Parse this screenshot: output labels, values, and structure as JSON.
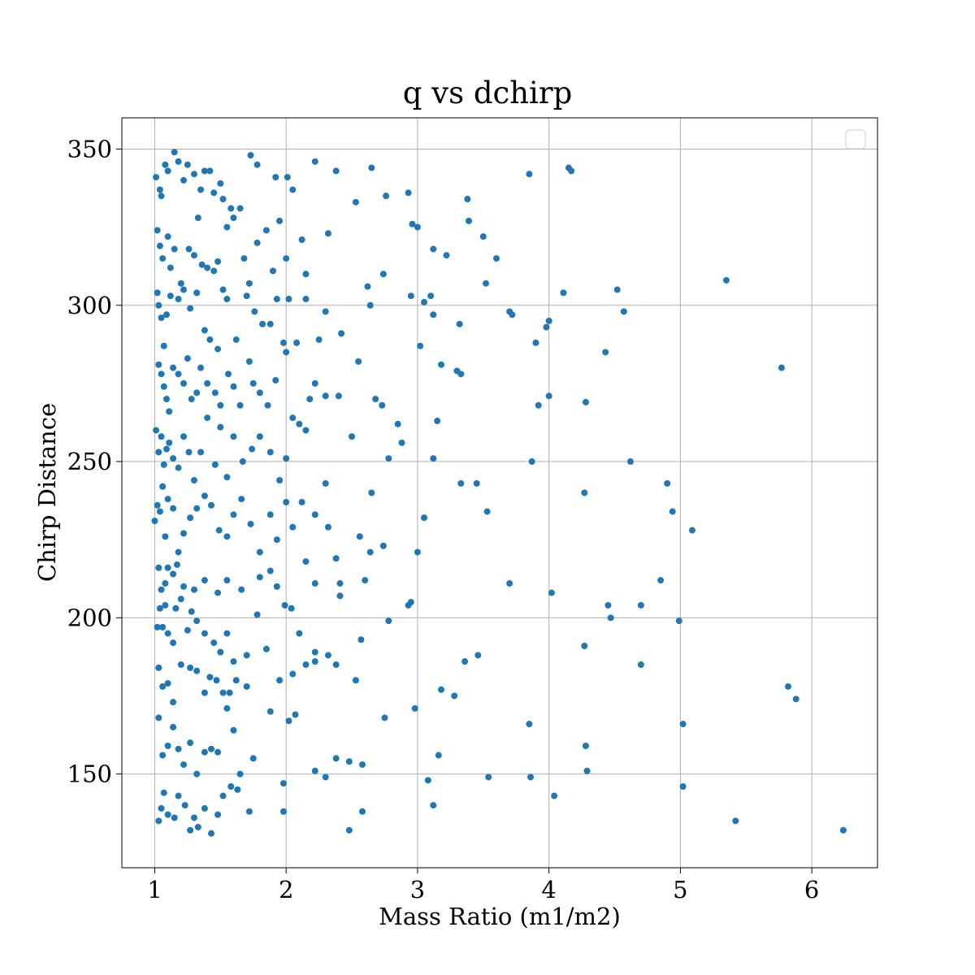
{
  "chart_data": {
    "type": "scatter",
    "title": "q vs dchirp",
    "xlabel": "Mass Ratio (m1/m2)",
    "ylabel": "Chirp Distance",
    "xlim": [
      0.75,
      6.5
    ],
    "ylim": [
      120,
      360
    ],
    "xticks": [
      1,
      2,
      3,
      4,
      5,
      6
    ],
    "yticks": [
      150,
      200,
      250,
      300,
      350
    ],
    "grid": true,
    "legend": {
      "placement": "top-right",
      "entries": []
    },
    "marker_color": "#1f77b4",
    "points": [
      [
        1.01,
        341
      ],
      [
        1.04,
        337
      ],
      [
        1.05,
        335
      ],
      [
        1.08,
        345
      ],
      [
        1.1,
        343
      ],
      [
        1.15,
        349
      ],
      [
        1.18,
        346
      ],
      [
        1.22,
        340
      ],
      [
        1.25,
        345
      ],
      [
        1.3,
        342
      ],
      [
        1.35,
        337
      ],
      [
        1.38,
        343
      ],
      [
        1.42,
        343
      ],
      [
        1.45,
        336
      ],
      [
        1.5,
        339
      ],
      [
        1.52,
        334
      ],
      [
        1.58,
        331
      ],
      [
        1.65,
        331
      ],
      [
        1.73,
        348
      ],
      [
        1.78,
        345
      ],
      [
        1.92,
        341
      ],
      [
        2.01,
        341
      ],
      [
        2.05,
        337
      ],
      [
        2.22,
        346
      ],
      [
        2.38,
        343
      ],
      [
        2.65,
        344
      ],
      [
        2.93,
        336
      ],
      [
        3.38,
        334
      ],
      [
        3.85,
        342
      ],
      [
        4.15,
        344
      ],
      [
        4.17,
        343
      ],
      [
        1.02,
        324
      ],
      [
        1.04,
        319
      ],
      [
        1.06,
        315
      ],
      [
        1.1,
        322
      ],
      [
        1.12,
        312
      ],
      [
        1.15,
        318
      ],
      [
        1.2,
        307
      ],
      [
        1.26,
        318
      ],
      [
        1.3,
        316
      ],
      [
        1.33,
        328
      ],
      [
        1.36,
        313
      ],
      [
        1.4,
        312
      ],
      [
        1.45,
        311
      ],
      [
        1.48,
        314
      ],
      [
        1.55,
        325
      ],
      [
        1.6,
        328
      ],
      [
        1.68,
        315
      ],
      [
        1.72,
        307
      ],
      [
        1.78,
        320
      ],
      [
        1.85,
        324
      ],
      [
        1.9,
        311
      ],
      [
        1.95,
        327
      ],
      [
        2.0,
        315
      ],
      [
        2.12,
        321
      ],
      [
        2.15,
        310
      ],
      [
        2.32,
        323
      ],
      [
        2.53,
        333
      ],
      [
        2.76,
        335
      ],
      [
        2.96,
        326
      ],
      [
        3.0,
        325
      ],
      [
        3.12,
        318
      ],
      [
        3.22,
        316
      ],
      [
        3.39,
        327
      ],
      [
        3.5,
        322
      ],
      [
        3.6,
        315
      ],
      [
        1.02,
        304
      ],
      [
        1.03,
        300
      ],
      [
        1.05,
        296
      ],
      [
        1.07,
        287
      ],
      [
        1.09,
        297
      ],
      [
        1.12,
        303
      ],
      [
        1.18,
        302
      ],
      [
        1.22,
        305
      ],
      [
        1.27,
        299
      ],
      [
        1.32,
        304
      ],
      [
        1.38,
        292
      ],
      [
        1.42,
        289
      ],
      [
        1.48,
        286
      ],
      [
        1.52,
        305
      ],
      [
        1.55,
        302
      ],
      [
        1.62,
        289
      ],
      [
        1.7,
        303
      ],
      [
        1.76,
        298
      ],
      [
        1.82,
        294
      ],
      [
        1.88,
        294
      ],
      [
        1.93,
        302
      ],
      [
        1.98,
        288
      ],
      [
        2.02,
        302
      ],
      [
        2.08,
        288
      ],
      [
        2.15,
        302
      ],
      [
        2.25,
        289
      ],
      [
        2.3,
        298
      ],
      [
        2.42,
        291
      ],
      [
        2.62,
        306
      ],
      [
        2.64,
        300
      ],
      [
        2.74,
        310
      ],
      [
        2.95,
        303
      ],
      [
        3.05,
        301
      ],
      [
        3.1,
        303
      ],
      [
        3.12,
        297
      ],
      [
        3.32,
        294
      ],
      [
        3.52,
        307
      ],
      [
        3.7,
        298
      ],
      [
        3.72,
        297
      ],
      [
        3.9,
        288
      ],
      [
        3.98,
        293
      ],
      [
        4.0,
        295
      ],
      [
        4.11,
        304
      ],
      [
        4.52,
        305
      ],
      [
        4.57,
        298
      ],
      [
        5.35,
        308
      ],
      [
        1.03,
        281
      ],
      [
        1.05,
        278
      ],
      [
        1.07,
        274
      ],
      [
        1.09,
        270
      ],
      [
        1.11,
        266
      ],
      [
        1.14,
        280
      ],
      [
        1.18,
        278
      ],
      [
        1.22,
        275
      ],
      [
        1.25,
        283
      ],
      [
        1.28,
        270
      ],
      [
        1.32,
        272
      ],
      [
        1.35,
        280
      ],
      [
        1.4,
        275
      ],
      [
        1.46,
        272
      ],
      [
        1.5,
        268
      ],
      [
        1.56,
        278
      ],
      [
        1.6,
        274
      ],
      [
        1.65,
        268
      ],
      [
        1.72,
        282
      ],
      [
        1.75,
        275
      ],
      [
        1.8,
        272
      ],
      [
        1.86,
        268
      ],
      [
        1.92,
        276
      ],
      [
        2.0,
        285
      ],
      [
        2.1,
        262
      ],
      [
        2.18,
        270
      ],
      [
        2.22,
        275
      ],
      [
        2.3,
        271
      ],
      [
        2.4,
        271
      ],
      [
        2.55,
        282
      ],
      [
        2.68,
        270
      ],
      [
        2.73,
        268
      ],
      [
        2.85,
        262
      ],
      [
        3.02,
        287
      ],
      [
        3.12,
        251
      ],
      [
        3.15,
        263
      ],
      [
        3.18,
        281
      ],
      [
        3.3,
        279
      ],
      [
        3.33,
        278
      ],
      [
        3.92,
        268
      ],
      [
        4.0,
        271
      ],
      [
        4.28,
        269
      ],
      [
        4.43,
        285
      ],
      [
        5.77,
        280
      ],
      [
        1.01,
        260
      ],
      [
        1.03,
        253
      ],
      [
        1.05,
        258
      ],
      [
        1.07,
        249
      ],
      [
        1.09,
        254
      ],
      [
        1.11,
        256
      ],
      [
        1.14,
        251
      ],
      [
        1.18,
        248
      ],
      [
        1.22,
        258
      ],
      [
        1.26,
        253
      ],
      [
        1.3,
        244
      ],
      [
        1.35,
        253
      ],
      [
        1.4,
        264
      ],
      [
        1.46,
        249
      ],
      [
        1.5,
        261
      ],
      [
        1.55,
        245
      ],
      [
        1.6,
        258
      ],
      [
        1.67,
        250
      ],
      [
        1.74,
        254
      ],
      [
        1.8,
        258
      ],
      [
        1.88,
        253
      ],
      [
        1.95,
        244
      ],
      [
        2.0,
        251
      ],
      [
        2.05,
        264
      ],
      [
        2.15,
        260
      ],
      [
        2.3,
        243
      ],
      [
        2.5,
        258
      ],
      [
        2.65,
        240
      ],
      [
        2.78,
        251
      ],
      [
        2.88,
        256
      ],
      [
        3.33,
        243
      ],
      [
        3.45,
        243
      ],
      [
        3.87,
        250
      ],
      [
        4.62,
        250
      ],
      [
        4.9,
        243
      ],
      [
        1.0,
        231
      ],
      [
        1.02,
        236
      ],
      [
        1.04,
        234
      ],
      [
        1.06,
        242
      ],
      [
        1.08,
        226
      ],
      [
        1.1,
        238
      ],
      [
        1.14,
        235
      ],
      [
        1.18,
        221
      ],
      [
        1.22,
        227
      ],
      [
        1.27,
        232
      ],
      [
        1.32,
        235
      ],
      [
        1.38,
        239
      ],
      [
        1.43,
        236
      ],
      [
        1.49,
        228
      ],
      [
        1.55,
        226
      ],
      [
        1.6,
        233
      ],
      [
        1.66,
        238
      ],
      [
        1.73,
        230
      ],
      [
        1.8,
        221
      ],
      [
        1.88,
        233
      ],
      [
        1.93,
        225
      ],
      [
        2.0,
        237
      ],
      [
        2.05,
        229
      ],
      [
        2.12,
        237
      ],
      [
        2.22,
        233
      ],
      [
        2.32,
        229
      ],
      [
        2.56,
        226
      ],
      [
        2.64,
        221
      ],
      [
        2.74,
        223
      ],
      [
        3.0,
        221
      ],
      [
        3.05,
        232
      ],
      [
        3.53,
        234
      ],
      [
        4.27,
        240
      ],
      [
        4.94,
        234
      ],
      [
        5.09,
        228
      ],
      [
        1.03,
        216
      ],
      [
        1.05,
        209
      ],
      [
        1.08,
        211
      ],
      [
        1.1,
        216
      ],
      [
        1.14,
        214
      ],
      [
        1.17,
        217
      ],
      [
        1.22,
        210
      ],
      [
        1.3,
        209
      ],
      [
        1.38,
        212
      ],
      [
        1.48,
        208
      ],
      [
        1.55,
        212
      ],
      [
        1.66,
        209
      ],
      [
        1.8,
        213
      ],
      [
        1.88,
        215
      ],
      [
        1.93,
        210
      ],
      [
        2.15,
        218
      ],
      [
        2.22,
        211
      ],
      [
        2.38,
        219
      ],
      [
        2.41,
        211
      ],
      [
        2.6,
        212
      ],
      [
        2.95,
        205
      ],
      [
        3.7,
        211
      ],
      [
        4.02,
        208
      ],
      [
        4.85,
        212
      ],
      [
        1.02,
        197
      ],
      [
        1.04,
        203
      ],
      [
        1.06,
        197
      ],
      [
        1.08,
        204
      ],
      [
        1.1,
        195
      ],
      [
        1.14,
        192
      ],
      [
        1.16,
        203
      ],
      [
        1.2,
        206
      ],
      [
        1.25,
        196
      ],
      [
        1.28,
        202
      ],
      [
        1.32,
        199
      ],
      [
        1.38,
        195
      ],
      [
        1.45,
        192
      ],
      [
        1.5,
        189
      ],
      [
        1.55,
        195
      ],
      [
        1.6,
        186
      ],
      [
        1.7,
        188
      ],
      [
        1.78,
        201
      ],
      [
        1.85,
        190
      ],
      [
        1.99,
        204
      ],
      [
        2.04,
        203
      ],
      [
        2.1,
        195
      ],
      [
        2.22,
        189
      ],
      [
        2.32,
        188
      ],
      [
        2.41,
        207
      ],
      [
        2.57,
        193
      ],
      [
        2.78,
        199
      ],
      [
        2.93,
        204
      ],
      [
        3.46,
        188
      ],
      [
        4.27,
        191
      ],
      [
        4.45,
        204
      ],
      [
        4.47,
        200
      ],
      [
        4.7,
        204
      ],
      [
        4.99,
        199
      ],
      [
        1.03,
        184
      ],
      [
        1.06,
        178
      ],
      [
        1.1,
        179
      ],
      [
        1.14,
        173
      ],
      [
        1.2,
        185
      ],
      [
        1.27,
        184
      ],
      [
        1.32,
        183
      ],
      [
        1.38,
        176
      ],
      [
        1.42,
        181
      ],
      [
        1.47,
        180
      ],
      [
        1.52,
        176
      ],
      [
        1.57,
        176
      ],
      [
        1.62,
        180
      ],
      [
        1.7,
        178
      ],
      [
        1.95,
        180
      ],
      [
        2.05,
        182
      ],
      [
        2.15,
        185
      ],
      [
        2.22,
        186
      ],
      [
        2.38,
        185
      ],
      [
        2.53,
        180
      ],
      [
        2.98,
        171
      ],
      [
        3.18,
        177
      ],
      [
        3.28,
        175
      ],
      [
        3.36,
        186
      ],
      [
        4.7,
        185
      ],
      [
        5.82,
        178
      ],
      [
        5.88,
        174
      ],
      [
        1.03,
        168
      ],
      [
        1.06,
        156
      ],
      [
        1.1,
        159
      ],
      [
        1.14,
        165
      ],
      [
        1.18,
        158
      ],
      [
        1.22,
        153
      ],
      [
        1.27,
        160
      ],
      [
        1.32,
        150
      ],
      [
        1.38,
        157
      ],
      [
        1.43,
        158
      ],
      [
        1.48,
        157
      ],
      [
        1.55,
        171
      ],
      [
        1.6,
        164
      ],
      [
        1.65,
        150
      ],
      [
        1.75,
        155
      ],
      [
        1.88,
        170
      ],
      [
        1.98,
        147
      ],
      [
        2.02,
        167
      ],
      [
        2.07,
        169
      ],
      [
        2.22,
        151
      ],
      [
        2.3,
        149
      ],
      [
        2.38,
        155
      ],
      [
        2.48,
        154
      ],
      [
        2.58,
        153
      ],
      [
        2.75,
        168
      ],
      [
        3.08,
        148
      ],
      [
        3.16,
        156
      ],
      [
        3.54,
        149
      ],
      [
        3.85,
        166
      ],
      [
        3.86,
        149
      ],
      [
        4.28,
        159
      ],
      [
        4.29,
        151
      ],
      [
        5.02,
        166
      ],
      [
        1.03,
        135
      ],
      [
        1.05,
        139
      ],
      [
        1.07,
        144
      ],
      [
        1.1,
        137
      ],
      [
        1.15,
        136
      ],
      [
        1.18,
        143
      ],
      [
        1.23,
        140
      ],
      [
        1.27,
        132
      ],
      [
        1.3,
        136
      ],
      [
        1.33,
        133
      ],
      [
        1.38,
        139
      ],
      [
        1.43,
        131
      ],
      [
        1.48,
        137
      ],
      [
        1.52,
        143
      ],
      [
        1.58,
        146
      ],
      [
        1.63,
        145
      ],
      [
        1.72,
        138
      ],
      [
        1.98,
        138
      ],
      [
        2.48,
        132
      ],
      [
        2.58,
        138
      ],
      [
        3.12,
        140
      ],
      [
        4.04,
        143
      ],
      [
        5.02,
        146
      ],
      [
        5.42,
        135
      ],
      [
        6.24,
        132
      ]
    ]
  }
}
